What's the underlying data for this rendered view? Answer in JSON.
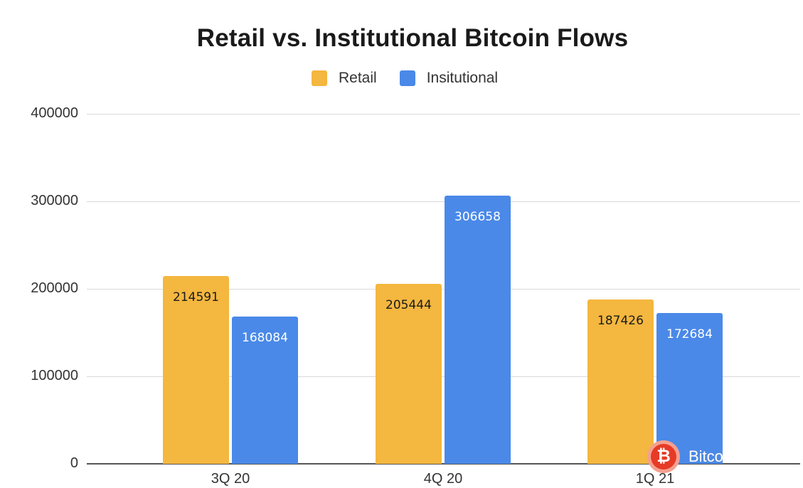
{
  "chart_data": {
    "type": "bar",
    "title": "Retail vs. Institutional Bitcoin Flows",
    "categories": [
      "3Q 20",
      "4Q 20",
      "1Q 21"
    ],
    "series": [
      {
        "name": "Retail",
        "color": "#f4b73f",
        "values": [
          214591,
          205444,
          187426
        ]
      },
      {
        "name": "Insitutional",
        "color": "#4a89e8",
        "values": [
          168084,
          306658,
          172684
        ]
      }
    ],
    "xlabel": "",
    "ylabel": "",
    "ylim": [
      0,
      400000
    ],
    "yticks": [
      "400000",
      "300000",
      "200000",
      "100000",
      "0"
    ],
    "grid": true,
    "legend_position": "top"
  },
  "watermark": {
    "symbol": "₿",
    "text": "Bitco"
  }
}
